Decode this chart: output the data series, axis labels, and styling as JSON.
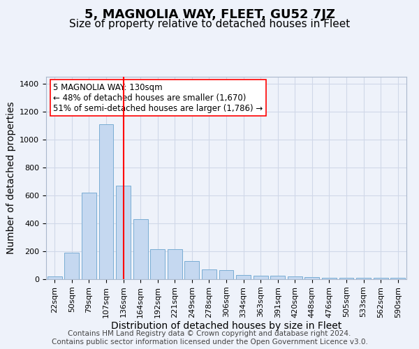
{
  "title": "5, MAGNOLIA WAY, FLEET, GU52 7JZ",
  "subtitle": "Size of property relative to detached houses in Fleet",
  "xlabel": "Distribution of detached houses by size in Fleet",
  "ylabel": "Number of detached properties",
  "bar_labels": [
    "22sqm",
    "50sqm",
    "79sqm",
    "107sqm",
    "136sqm",
    "164sqm",
    "192sqm",
    "221sqm",
    "249sqm",
    "278sqm",
    "306sqm",
    "334sqm",
    "363sqm",
    "391sqm",
    "420sqm",
    "448sqm",
    "476sqm",
    "505sqm",
    "533sqm",
    "562sqm",
    "590sqm"
  ],
  "bar_values": [
    20,
    190,
    620,
    1110,
    670,
    430,
    215,
    215,
    130,
    70,
    65,
    30,
    25,
    25,
    20,
    15,
    12,
    12,
    12,
    8,
    12
  ],
  "bar_color": "#c5d8f0",
  "bar_edgecolor": "#7aadd4",
  "vline_index": 4,
  "vline_color": "red",
  "vline_linewidth": 1.5,
  "annotation_text": "5 MAGNOLIA WAY: 130sqm\n← 48% of detached houses are smaller (1,670)\n51% of semi-detached houses are larger (1,786) →",
  "annotation_fontsize": 8.5,
  "annotation_boxstyle": "square,pad=0.4",
  "annotation_edgecolor": "red",
  "annotation_facecolor": "white",
  "ylim": [
    0,
    1450
  ],
  "yticks": [
    0,
    200,
    400,
    600,
    800,
    1000,
    1200,
    1400
  ],
  "grid_color": "#d0d8e8",
  "bg_color": "#eef2fa",
  "axes_bg_color": "#eef2fa",
  "title_fontsize": 13,
  "subtitle_fontsize": 11,
  "xlabel_fontsize": 10,
  "ylabel_fontsize": 10,
  "tick_fontsize": 8,
  "footer_text": "Contains HM Land Registry data © Crown copyright and database right 2024.\nContains public sector information licensed under the Open Government Licence v3.0.",
  "footer_fontsize": 7.5
}
